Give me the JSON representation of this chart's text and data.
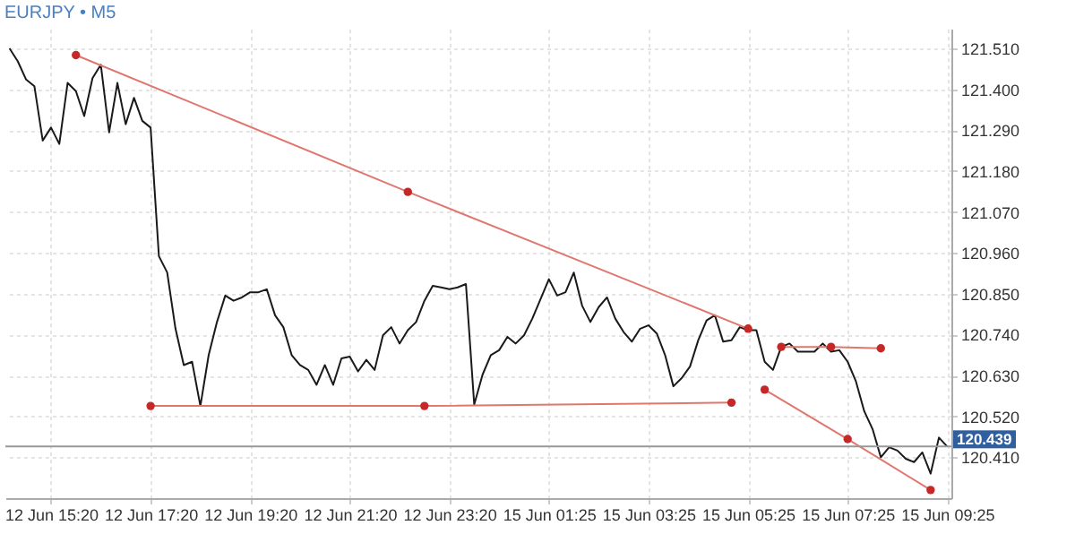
{
  "chart_data": {
    "type": "line",
    "title": "EURJPY • M5",
    "categories": [
      null,
      null,
      null,
      null,
      null,
      "12 Jun 15:20",
      null,
      null,
      null,
      null,
      null,
      null,
      null,
      null,
      null,
      null,
      null,
      "12 Jun 17:20",
      null,
      null,
      null,
      null,
      null,
      null,
      null,
      null,
      null,
      null,
      null,
      "12 Jun 19:20",
      null,
      null,
      null,
      null,
      null,
      null,
      null,
      null,
      null,
      null,
      null,
      "12 Jun 21:20",
      null,
      null,
      null,
      null,
      null,
      null,
      null,
      null,
      null,
      null,
      null,
      "12 Jun 23:20",
      null,
      null,
      null,
      null,
      null,
      null,
      null,
      null,
      null,
      null,
      null,
      "15 Jun 01:25",
      null,
      null,
      null,
      null,
      null,
      null,
      null,
      null,
      null,
      null,
      null,
      "15 Jun 03:25",
      null,
      null,
      null,
      null,
      null,
      null,
      null,
      null,
      null,
      null,
      null,
      "15 Jun 05:25",
      null,
      null,
      null,
      null,
      null,
      null,
      null,
      null,
      null,
      null,
      null,
      "15 Jun 07:25",
      null,
      null,
      null,
      null,
      null,
      null,
      null,
      null,
      null,
      null,
      null,
      "15 Jun 09:25"
    ],
    "ylim": [
      120.3,
      121.563
    ],
    "yticks": [
      {
        "value": 120.41,
        "label": "120.410"
      },
      {
        "value": 120.52,
        "label": "120.520"
      },
      {
        "value": 120.63,
        "label": "120.630"
      },
      {
        "value": 120.74,
        "label": "120.740"
      },
      {
        "value": 120.85,
        "label": "120.850"
      },
      {
        "value": 120.96,
        "label": "120.960"
      },
      {
        "value": 121.07,
        "label": "121.070"
      },
      {
        "value": 121.18,
        "label": "121.180"
      },
      {
        "value": 121.29,
        "label": "121.290"
      },
      {
        "value": 121.4,
        "label": "121.400"
      },
      {
        "value": 121.51,
        "label": "121.510"
      }
    ],
    "grid": true,
    "ref_lines": [
      {
        "axis": "y",
        "value": 120.439,
        "label": "120.439",
        "color": "#999999"
      }
    ],
    "series": [
      {
        "color": "#1a1a1a",
        "marker": "none",
        "values": [
          121.51,
          121.475,
          121.426,
          121.408,
          121.262,
          121.297,
          121.253,
          121.417,
          121.395,
          121.328,
          121.43,
          121.466,
          121.284,
          121.417,
          121.306,
          121.377,
          121.315,
          121.297,
          120.951,
          120.907,
          120.756,
          120.658,
          120.667,
          120.548,
          120.685,
          120.774,
          120.845,
          120.831,
          120.84,
          120.854,
          120.854,
          120.862,
          120.792,
          120.76,
          120.685,
          120.658,
          120.645,
          120.605,
          120.658,
          120.605,
          120.676,
          120.681,
          120.641,
          120.672,
          120.645,
          120.738,
          120.76,
          120.716,
          120.752,
          120.774,
          120.831,
          120.871,
          120.867,
          120.862,
          120.867,
          120.876,
          120.552,
          120.632,
          120.685,
          120.698,
          120.734,
          120.716,
          120.738,
          120.783,
          120.836,
          120.889,
          120.845,
          120.854,
          120.907,
          120.818,
          120.774,
          120.814,
          120.84,
          120.783,
          120.747,
          120.721,
          120.756,
          120.765,
          120.743,
          120.685,
          120.601,
          120.623,
          120.654,
          120.725,
          120.778,
          120.792,
          120.721,
          120.725,
          120.76,
          120.752,
          120.752,
          120.667,
          120.645,
          120.707,
          120.716,
          120.694,
          120.694,
          120.694,
          120.716,
          120.694,
          120.698,
          120.667,
          120.614,
          120.534,
          120.486,
          120.41,
          120.437,
          120.428,
          120.406,
          120.397,
          120.423,
          120.366,
          120.463,
          120.439
        ]
      },
      {
        "color": "#e0776f",
        "marker": "circle",
        "values": [
          null,
          null,
          null,
          null,
          null,
          null,
          null,
          null,
          121.492,
          null,
          null,
          null,
          null,
          null,
          null,
          null,
          null,
          null,
          null,
          null,
          null,
          null,
          null,
          null,
          null,
          null,
          null,
          null,
          null,
          null,
          null,
          null,
          null,
          null,
          null,
          null,
          null,
          null,
          null,
          null,
          null,
          null,
          null,
          null,
          null,
          null,
          null,
          null,
          121.124,
          null,
          null,
          null,
          null,
          null,
          null,
          null,
          null,
          null,
          null,
          null,
          null,
          null,
          null,
          null,
          null,
          null,
          null,
          null,
          null,
          null,
          null,
          null,
          null,
          null,
          null,
          null,
          null,
          null,
          null,
          null,
          null,
          null,
          null,
          null,
          null,
          null,
          null,
          null,
          null,
          120.756,
          null,
          null,
          null,
          null,
          null,
          null,
          null,
          null,
          null,
          null,
          null,
          null,
          null,
          null,
          null,
          null,
          null,
          null,
          null,
          null,
          null,
          null,
          null,
          null
        ]
      },
      {
        "color": "#e0776f",
        "marker": "circle",
        "values": [
          null,
          null,
          null,
          null,
          null,
          null,
          null,
          null,
          null,
          null,
          null,
          null,
          null,
          null,
          null,
          null,
          null,
          120.548,
          null,
          null,
          null,
          null,
          null,
          null,
          null,
          null,
          null,
          null,
          null,
          null,
          null,
          null,
          null,
          null,
          null,
          null,
          null,
          null,
          null,
          null,
          null,
          null,
          null,
          null,
          null,
          null,
          null,
          null,
          null,
          null,
          120.548,
          null,
          null,
          null,
          null,
          null,
          null,
          null,
          null,
          null,
          null,
          null,
          null,
          null,
          null,
          null,
          null,
          null,
          null,
          null,
          null,
          null,
          null,
          null,
          null,
          null,
          null,
          null,
          null,
          null,
          null,
          null,
          null,
          null,
          null,
          null,
          null,
          120.557,
          null,
          null,
          null,
          null,
          null,
          null,
          null,
          null,
          null,
          null,
          null,
          null,
          null,
          null,
          null,
          null,
          null,
          null,
          null,
          null,
          null,
          null,
          null,
          null,
          null,
          null
        ]
      },
      {
        "color": "#e0776f",
        "marker": "circle",
        "values": [
          null,
          null,
          null,
          null,
          null,
          null,
          null,
          null,
          null,
          null,
          null,
          null,
          null,
          null,
          null,
          null,
          null,
          null,
          null,
          null,
          null,
          null,
          null,
          null,
          null,
          null,
          null,
          null,
          null,
          null,
          null,
          null,
          null,
          null,
          null,
          null,
          null,
          null,
          null,
          null,
          null,
          null,
          null,
          null,
          null,
          null,
          null,
          null,
          null,
          null,
          null,
          null,
          null,
          null,
          null,
          null,
          null,
          null,
          null,
          null,
          null,
          null,
          null,
          null,
          null,
          null,
          null,
          null,
          null,
          null,
          null,
          null,
          null,
          null,
          null,
          null,
          null,
          null,
          null,
          null,
          null,
          null,
          null,
          null,
          null,
          null,
          null,
          null,
          null,
          null,
          null,
          null,
          null,
          120.707,
          null,
          null,
          null,
          null,
          null,
          120.707,
          null,
          null,
          null,
          null,
          null,
          120.703,
          null,
          null,
          null,
          null,
          null,
          null,
          null,
          null
        ]
      },
      {
        "color": "#e0776f",
        "marker": "circle",
        "values": [
          null,
          null,
          null,
          null,
          null,
          null,
          null,
          null,
          null,
          null,
          null,
          null,
          null,
          null,
          null,
          null,
          null,
          null,
          null,
          null,
          null,
          null,
          null,
          null,
          null,
          null,
          null,
          null,
          null,
          null,
          null,
          null,
          null,
          null,
          null,
          null,
          null,
          null,
          null,
          null,
          null,
          null,
          null,
          null,
          null,
          null,
          null,
          null,
          null,
          null,
          null,
          null,
          null,
          null,
          null,
          null,
          null,
          null,
          null,
          null,
          null,
          null,
          null,
          null,
          null,
          null,
          null,
          null,
          null,
          null,
          null,
          null,
          null,
          null,
          null,
          null,
          null,
          null,
          null,
          null,
          null,
          null,
          null,
          null,
          null,
          null,
          null,
          null,
          null,
          null,
          null,
          120.592,
          null,
          null,
          null,
          null,
          null,
          null,
          null,
          null,
          null,
          120.459,
          null,
          null,
          null,
          null,
          null,
          null,
          null,
          null,
          null,
          120.322,
          null,
          null
        ]
      }
    ]
  }
}
